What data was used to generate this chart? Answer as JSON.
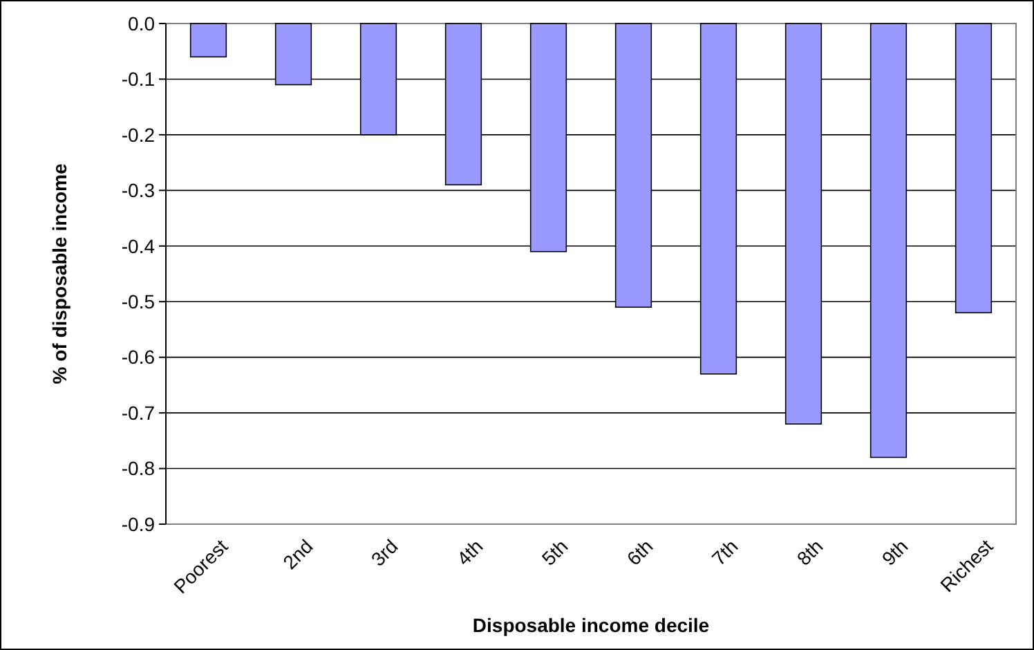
{
  "chart_data": {
    "type": "bar",
    "xlabel": "Disposable income decile",
    "ylabel": "% of disposable income",
    "categories": [
      "Poorest",
      "2nd",
      "3rd",
      "4th",
      "5th",
      "6th",
      "7th",
      "8th",
      "9th",
      "Richest"
    ],
    "values": [
      -0.06,
      -0.11,
      -0.2,
      -0.29,
      -0.41,
      -0.51,
      -0.63,
      -0.72,
      -0.78,
      -0.52
    ],
    "color": "#9999ff",
    "ylim": [
      -0.9,
      0
    ],
    "yticks": [
      {
        "value": 0,
        "label": "0.0"
      },
      -0.1,
      -0.2,
      -0.3,
      -0.4,
      -0.5,
      -0.6,
      -0.7,
      -0.8,
      -0.9
    ],
    "grid": "y"
  }
}
